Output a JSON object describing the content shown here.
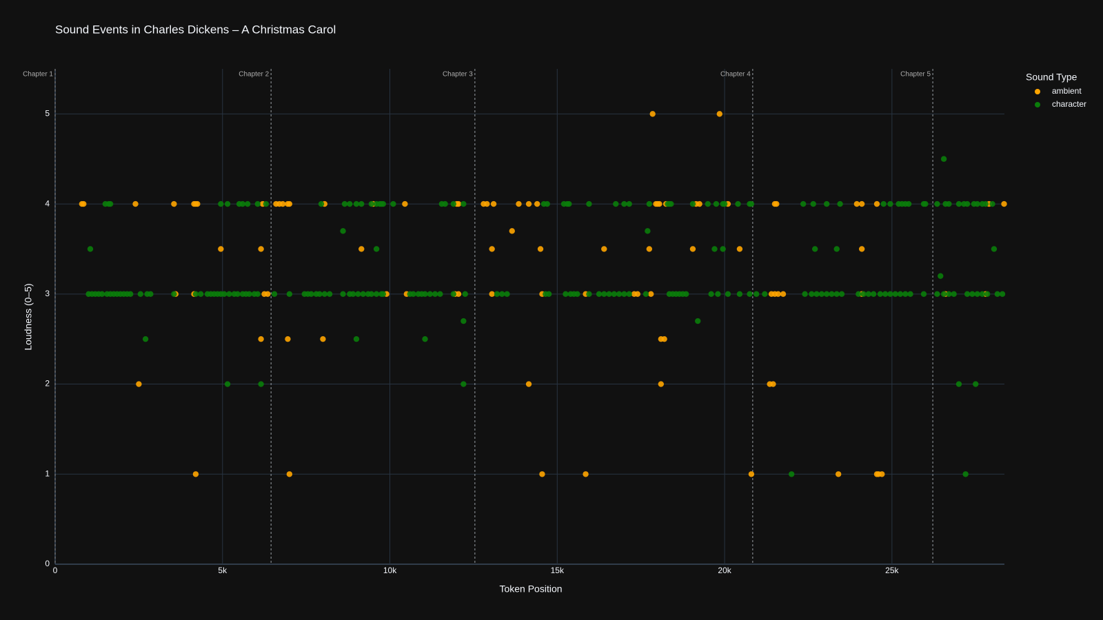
{
  "chart_data": {
    "type": "scatter",
    "title": "Sound Events in Charles Dickens – A Christmas Carol",
    "x_label": "Token Position",
    "y_label": "Loudness (0–5)",
    "legend_title": "Sound Type",
    "grid": true,
    "xlim": [
      0,
      28360
    ],
    "ylim": [
      0,
      5.5
    ],
    "xticks": [
      0,
      {
        "value": 5000,
        "label": "5k"
      },
      {
        "value": 10000,
        "label": "10k"
      },
      {
        "value": 15000,
        "label": "15k"
      },
      {
        "value": 20000,
        "label": "20k"
      },
      {
        "value": 25000,
        "label": "25k"
      }
    ],
    "yticks": [
      0,
      1,
      2,
      3,
      4,
      5
    ],
    "annotations": [
      {
        "text": "Chapter 1",
        "x": 0
      },
      {
        "text": "Chapter 2",
        "x": 6450
      },
      {
        "text": "Chapter 3",
        "x": 12540
      },
      {
        "text": "Chapter 4",
        "x": 20840
      },
      {
        "text": "Chapter 5",
        "x": 26220
      }
    ],
    "series": [
      {
        "name": "ambient",
        "color": "#ffa500",
        "x": [
          800,
          850,
          2400,
          2500,
          3550,
          4150,
          4200,
          4250,
          4200,
          4150,
          3600,
          4950,
          6150,
          6150,
          6200,
          6250,
          6350,
          6600,
          6700,
          6800,
          6950,
          7000,
          6950,
          7000,
          8000,
          8050,
          9150,
          9500,
          9900,
          10450,
          10500,
          11950,
          12000,
          12050,
          12050,
          12800,
          12900,
          13050,
          13050,
          13100,
          13650,
          13850,
          14150,
          14150,
          14400,
          14500,
          14550,
          14550,
          15850,
          15850,
          16400,
          17300,
          17400,
          17750,
          17800,
          17850,
          17950,
          18000,
          18050,
          18100,
          18100,
          18200,
          18250,
          19050,
          19150,
          19250,
          19850,
          20100,
          20450,
          20800,
          21350,
          21450,
          21400,
          21500,
          21600,
          21500,
          21550,
          21750,
          23400,
          23950,
          24100,
          24100,
          24100,
          24550,
          24600,
          24700,
          24550,
          27900,
          28350,
          26600,
          27800
        ],
        "values": [
          4,
          4,
          4,
          2,
          4,
          4,
          4,
          4,
          1,
          3,
          3,
          3.5,
          3.5,
          2.5,
          4,
          3,
          3,
          4,
          4,
          4,
          4,
          4,
          2.5,
          1,
          2.5,
          4,
          3.5,
          4,
          3,
          4,
          3,
          3,
          4,
          4,
          3,
          4,
          4,
          3.5,
          3,
          4,
          3.7,
          4,
          2,
          4,
          4,
          3.5,
          3,
          1,
          1,
          3,
          3.5,
          3,
          3,
          3.5,
          3,
          5,
          4,
          4,
          4,
          2.5,
          2,
          2.5,
          4,
          3.5,
          4,
          4,
          5,
          4,
          3.5,
          1,
          2,
          2,
          3,
          3,
          3,
          4,
          4,
          3,
          1,
          4,
          4,
          3.5,
          3,
          1,
          1,
          1,
          4,
          4,
          4,
          3,
          3
        ]
      },
      {
        "name": "character",
        "color": "#0a7d0a",
        "x": [
          1000,
          1100,
          1200,
          1300,
          1400,
          1550,
          1650,
          1750,
          1850,
          1950,
          2050,
          2150,
          2250,
          2550,
          2750,
          2850,
          3550,
          4200,
          4350,
          4550,
          4650,
          4750,
          4850,
          4950,
          5050,
          5200,
          5350,
          5450,
          5600,
          5700,
          5800,
          5950,
          6050,
          6550,
          7000,
          7450,
          7550,
          7650,
          7800,
          7900,
          8050,
          8200,
          8600,
          8800,
          8900,
          9050,
          9200,
          9350,
          9450,
          9600,
          9750,
          9800,
          10600,
          10700,
          10850,
          10950,
          11050,
          11200,
          11350,
          11500,
          11900,
          12250,
          13200,
          13350,
          13500,
          14650,
          14750,
          15250,
          15400,
          15500,
          15600,
          15950,
          16250,
          16400,
          16550,
          16700,
          16850,
          17000,
          17150,
          17650,
          18350,
          18450,
          18550,
          18650,
          18750,
          18850,
          19600,
          19800,
          20100,
          20450,
          20750,
          20950,
          21200,
          22400,
          22600,
          22750,
          22900,
          23050,
          23200,
          23350,
          23500,
          24000,
          24150,
          24300,
          24450,
          24650,
          24800,
          24950,
          25100,
          25250,
          25400,
          25550,
          25950,
          26350,
          26550,
          26700,
          26850,
          27250,
          27400,
          27550,
          27700,
          27850,
          28150,
          28300,
          1500,
          1600,
          1650,
          4950,
          5150,
          5500,
          5600,
          5750,
          6050,
          6300,
          7950,
          8650,
          8800,
          9000,
          9150,
          9450,
          9600,
          9700,
          9750,
          9800,
          10100,
          11550,
          11650,
          11900,
          12200,
          14600,
          14700,
          15200,
          15300,
          15350,
          15950,
          16750,
          17000,
          17150,
          17750,
          18300,
          18350,
          18400,
          19050,
          19500,
          19750,
          19950,
          20000,
          20400,
          20750,
          20800,
          22350,
          22650,
          23050,
          23450,
          24750,
          24950,
          25200,
          25300,
          25400,
          25500,
          25950,
          26000,
          26350,
          26600,
          26700,
          27000,
          27150,
          27250,
          27450,
          27550,
          27700,
          27800,
          28000,
          1050,
          2700,
          5150,
          6150,
          8600,
          9000,
          9600,
          11050,
          12200,
          12200,
          17700,
          19200,
          19700,
          19950,
          22000,
          22700,
          23350,
          26450,
          26550,
          27000,
          27200,
          27500,
          28050
        ],
        "values": [
          3,
          3,
          3,
          3,
          3,
          3,
          3,
          3,
          3,
          3,
          3,
          3,
          3,
          3,
          3,
          3,
          3,
          3,
          3,
          3,
          3,
          3,
          3,
          3,
          3,
          3,
          3,
          3,
          3,
          3,
          3,
          3,
          3,
          3,
          3,
          3,
          3,
          3,
          3,
          3,
          3,
          3,
          3,
          3,
          3,
          3,
          3,
          3,
          3,
          3,
          3,
          3,
          3,
          3,
          3,
          3,
          3,
          3,
          3,
          3,
          3,
          3,
          3,
          3,
          3,
          3,
          3,
          3,
          3,
          3,
          3,
          3,
          3,
          3,
          3,
          3,
          3,
          3,
          3,
          3,
          3,
          3,
          3,
          3,
          3,
          3,
          3,
          3,
          3,
          3,
          3,
          3,
          3,
          3,
          3,
          3,
          3,
          3,
          3,
          3,
          3,
          3,
          3,
          3,
          3,
          3,
          3,
          3,
          3,
          3,
          3,
          3,
          3,
          3,
          3,
          3,
          3,
          3,
          3,
          3,
          3,
          3,
          3,
          3,
          4,
          4,
          4,
          4,
          4,
          4,
          4,
          4,
          4,
          4,
          4,
          4,
          4,
          4,
          4,
          4,
          4,
          4,
          4,
          4,
          4,
          4,
          4,
          4,
          4,
          4,
          4,
          4,
          4,
          4,
          4,
          4,
          4,
          4,
          4,
          4,
          4,
          4,
          4,
          4,
          4,
          4,
          4,
          4,
          4,
          4,
          4,
          4,
          4,
          4,
          4,
          4,
          4,
          4,
          4,
          4,
          4,
          4,
          4,
          4,
          4,
          4,
          4,
          4,
          4,
          4,
          4,
          4,
          4,
          3.5,
          2.5,
          2,
          2,
          3.7,
          2.5,
          3.5,
          2.5,
          2.7,
          2,
          3.7,
          2.7,
          3.5,
          3.5,
          1,
          3.5,
          3.5,
          3.2,
          4.5,
          2,
          1,
          2,
          3.5
        ]
      }
    ]
  }
}
